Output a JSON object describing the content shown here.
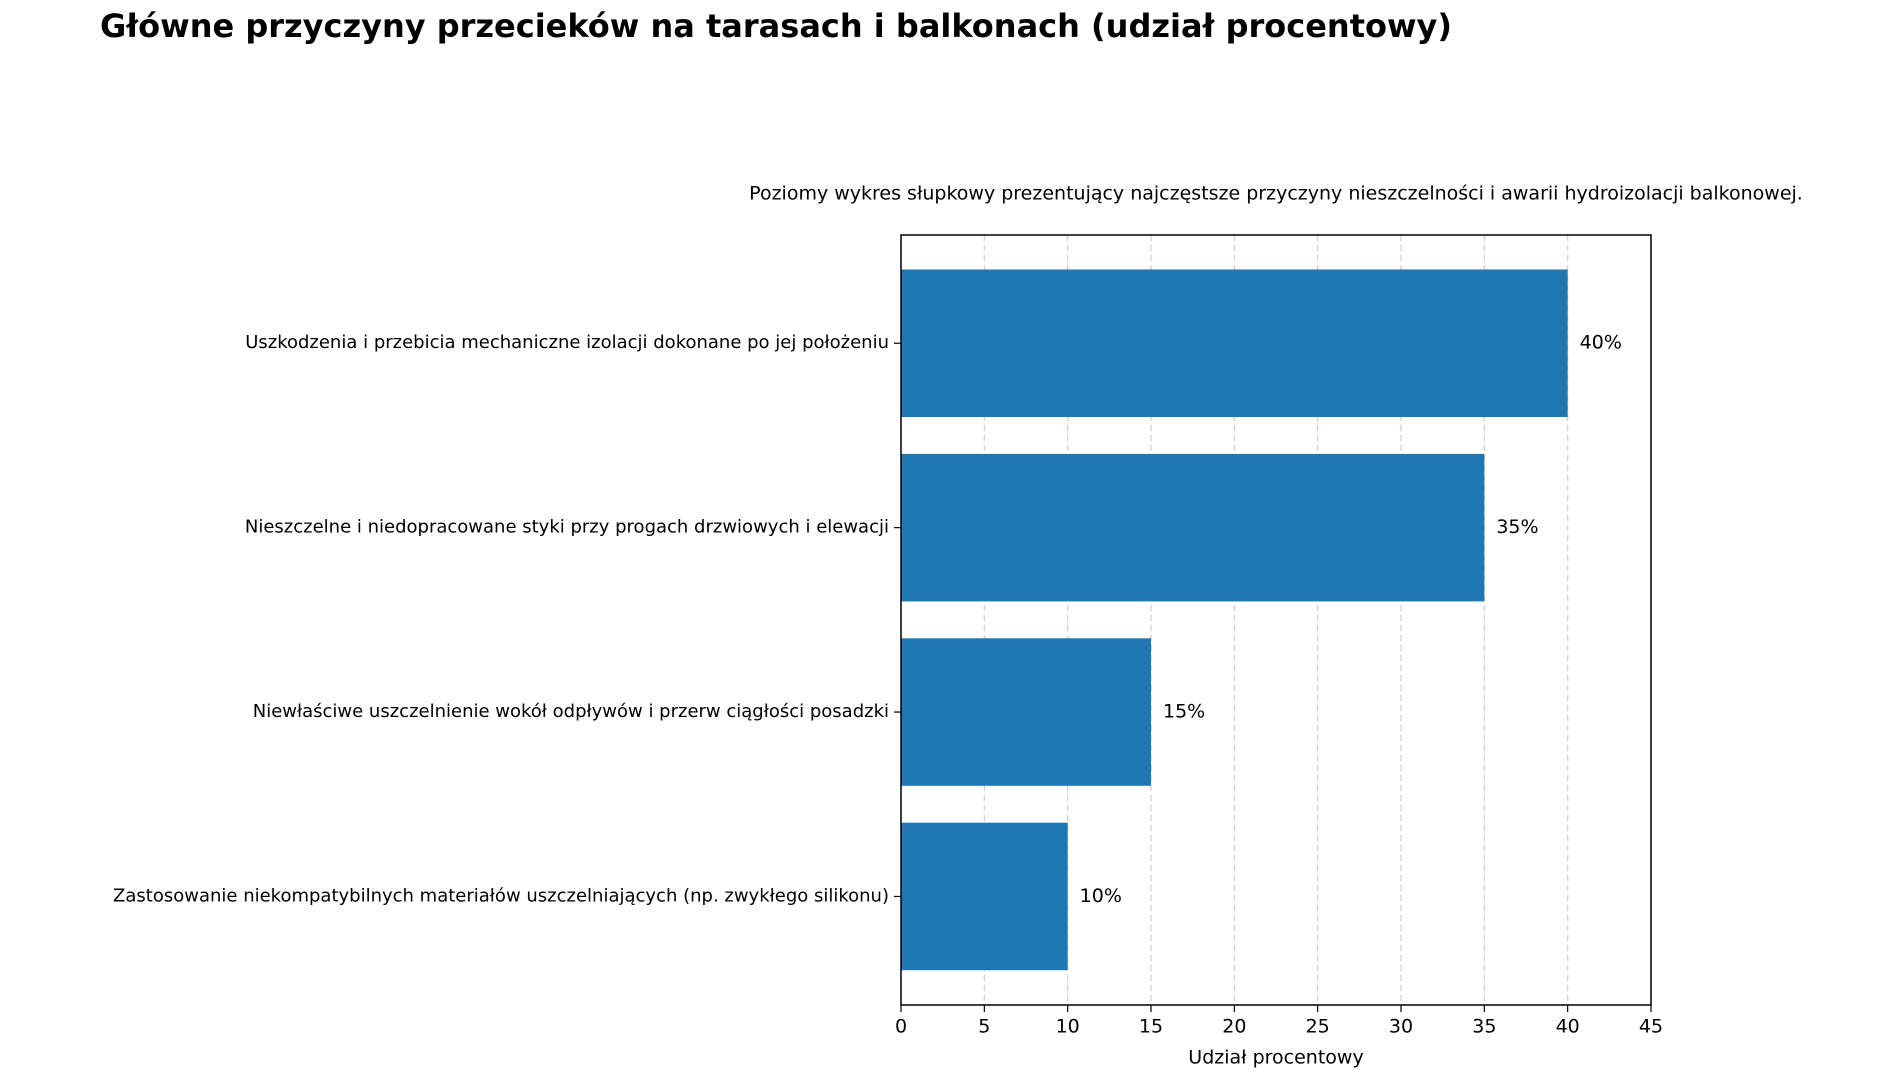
{
  "chart_data": {
    "type": "barh",
    "title": "Główne przyczyny przecieków na tarasach i balkonach (udział procentowy)",
    "subtitle": "Poziomy wykres słupkowy prezentujący najczęstsze przyczyny nieszczelności i awarii hydroizolacji balkonowej.",
    "x_label": "Udział procentowy",
    "categories": [
      "Uszkodzenia i przebicia mechaniczne izolacji dokonane po jej położeniu",
      "Nieszczelne i niedopracowane styki przy progach drzwiowych i elewacji",
      "Niewłaściwe uszczelnienie wokół odpływów i przerw ciągłości posadzki",
      "Zastosowanie niekompatybilnych materiałów uszczelniających (np. zwykłego silikonu)"
    ],
    "values": [
      40,
      35,
      15,
      10
    ],
    "value_labels": [
      "40%",
      "35%",
      "15%",
      "10%"
    ],
    "color": "#1f77b4",
    "xlim": [
      0,
      45
    ],
    "xticks": [
      0,
      5,
      10,
      15,
      20,
      25,
      30,
      35,
      40,
      45
    ],
    "grid": true
  }
}
